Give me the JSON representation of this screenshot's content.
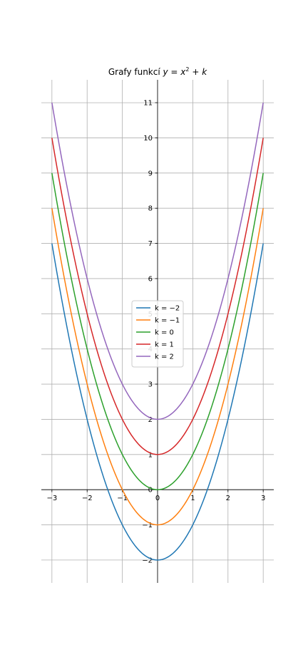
{
  "chart_data": {
    "type": "line",
    "title": "Grafy funkcí y = x² + k",
    "title_parts": {
      "prefix": "Grafy funkcí ",
      "var": "y",
      "eq": " = ",
      "base": "x",
      "exp": "2",
      "rest": " + ",
      "param": "k"
    },
    "function": "y = x^2 + k",
    "xlabel": "",
    "ylabel": "",
    "xlim": [
      -3.3,
      3.3
    ],
    "ylim": [
      -2.65,
      11.65
    ],
    "x_range": [
      -3,
      3
    ],
    "xticks": [
      -3,
      -2,
      -1,
      0,
      1,
      2,
      3
    ],
    "xtick_labels": [
      "−3",
      "−2",
      "−1",
      "0",
      "1",
      "2",
      "3"
    ],
    "yticks": [
      -2,
      -1,
      0,
      1,
      2,
      3,
      4,
      5,
      6,
      7,
      8,
      9,
      10,
      11
    ],
    "ytick_labels": [
      "−2",
      "−1",
      "0",
      "1",
      "2",
      "3",
      "4",
      "5",
      "6",
      "7",
      "8",
      "9",
      "10",
      "11"
    ],
    "grid": true,
    "spines": "centered",
    "legend_placement": "center",
    "series": [
      {
        "name": "k = −2",
        "k": -2,
        "color": "#1f77b4",
        "x": [
          -3,
          -2,
          -1,
          0,
          1,
          2,
          3
        ],
        "y": [
          7,
          2,
          -1,
          -2,
          -1,
          2,
          7
        ]
      },
      {
        "name": "k = −1",
        "k": -1,
        "color": "#ff7f0e",
        "x": [
          -3,
          -2,
          -1,
          0,
          1,
          2,
          3
        ],
        "y": [
          8,
          3,
          0,
          -1,
          0,
          3,
          8
        ]
      },
      {
        "name": "k = 0",
        "k": 0,
        "color": "#2ca02c",
        "x": [
          -3,
          -2,
          -1,
          0,
          1,
          2,
          3
        ],
        "y": [
          9,
          4,
          1,
          0,
          1,
          4,
          9
        ]
      },
      {
        "name": "k = 1",
        "k": 1,
        "color": "#d62728",
        "x": [
          -3,
          -2,
          -1,
          0,
          1,
          2,
          3
        ],
        "y": [
          10,
          5,
          2,
          1,
          2,
          5,
          10
        ]
      },
      {
        "name": "k = 2",
        "k": 2,
        "color": "#9467bd",
        "x": [
          -3,
          -2,
          -1,
          0,
          1,
          2,
          3
        ],
        "y": [
          11,
          6,
          3,
          2,
          3,
          6,
          11
        ]
      }
    ]
  }
}
